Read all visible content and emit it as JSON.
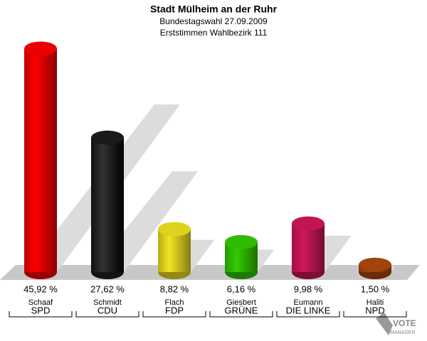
{
  "chart_data": {
    "type": "bar",
    "title": "Stadt Mülheim an der Ruhr",
    "subtitle": [
      "Bundestagswahl 27.09.2009",
      "Erststimmen Wahlbezirk 111"
    ],
    "candidates": [
      "Schaaf",
      "Schmidt",
      "Flach",
      "Giesbert",
      "Eumann",
      "Haliti"
    ],
    "categories": [
      "SPD",
      "CDU",
      "FDP",
      "GRÜNE",
      "DIE LINKE",
      "NPD"
    ],
    "values": [
      45.92,
      27.62,
      8.82,
      6.16,
      9.98,
      1.5
    ],
    "value_labels": [
      "45,92 %",
      "27,62 %",
      "8,82 %",
      "6,16 %",
      "9,98 %",
      "1,50 %"
    ],
    "colors": [
      "#ff0000",
      "#000000",
      "#f2e422",
      "#33cc00",
      "#d0185a",
      "#b0480e"
    ],
    "logo": [
      "VOTE",
      "MANAGER"
    ]
  }
}
